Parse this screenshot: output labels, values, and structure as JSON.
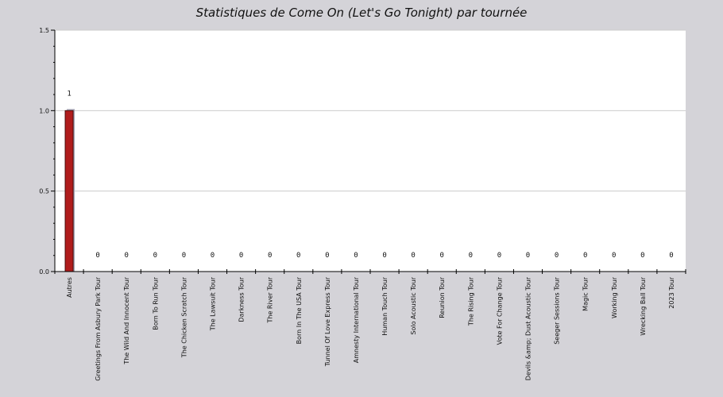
{
  "colors": {
    "background": "#d4d3d8",
    "plot_background": "#ffffff",
    "bar_fill": "#b01c1c",
    "bar_border": "#4a0a0a",
    "bar_shadow": "#a8a8b8",
    "grid": "#cccccc",
    "axis": "#000000"
  },
  "chart_data": {
    "type": "bar",
    "title": "Statistiques de Come On (Let's Go Tonight) par tournée",
    "xlabel": "",
    "ylabel": "",
    "ylim": [
      0,
      1.5
    ],
    "yticks": [
      "0.0",
      "0.5",
      "1.0",
      "1.5"
    ],
    "grid": true,
    "categories": [
      "Autres",
      "Greetings From Asbury Park Tour",
      "The Wild And Innocent Tour",
      "Born To Run Tour",
      "The Chicken Scratch Tour",
      "The Lawsuit Tour",
      "Darkness Tour",
      "The River Tour",
      "Born In The USA Tour",
      "Tunnel Of Love Express Tour",
      "Amnesty International Tour",
      "Human Touch Tour",
      "Solo Acoustic Tour",
      "Reunion Tour",
      "The Rising Tour",
      "Vote For Change Tour",
      "Devils &amp; Dust Acoustic Tour",
      "Seeger Sessions Tour",
      "Magic Tour",
      "Working Tour",
      "Wrecking Ball Tour",
      "2023 Tour"
    ],
    "values": [
      1,
      0,
      0,
      0,
      0,
      0,
      0,
      0,
      0,
      0,
      0,
      0,
      0,
      0,
      0,
      0,
      0,
      0,
      0,
      0,
      0,
      0
    ],
    "value_labels": [
      "1",
      "0",
      "0",
      "0",
      "0",
      "0",
      "0",
      "0",
      "0",
      "0",
      "0",
      "0",
      "0",
      "0",
      "0",
      "0",
      "0",
      "0",
      "0",
      "0",
      "0",
      "0"
    ]
  }
}
